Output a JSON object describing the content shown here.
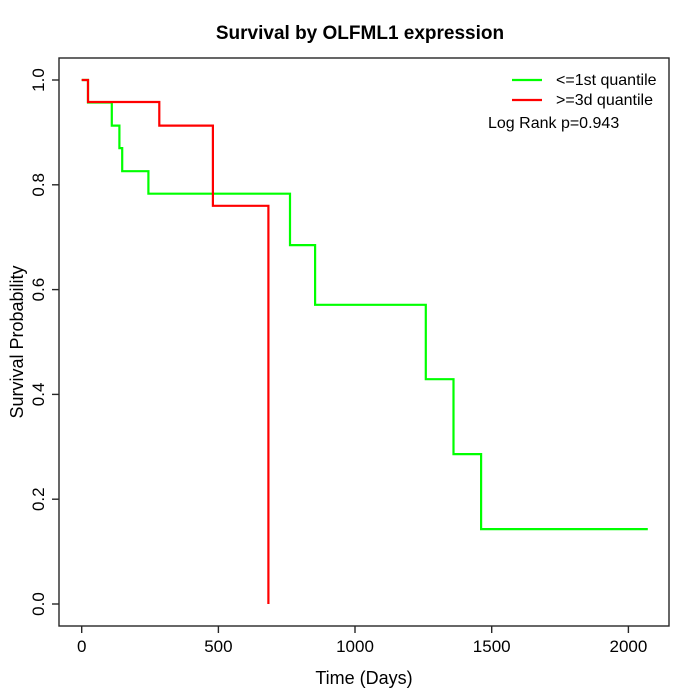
{
  "page": {
    "background_color": "#ffffff",
    "frame_color": "#262626",
    "text_color": "#000000"
  },
  "chart_data": {
    "type": "line",
    "subtype": "kaplan-meier-step-curves",
    "title": "Survival by OLFML1 expression",
    "xlabel": "Time (Days)",
    "ylabel": "Survival Probability",
    "xlim": [
      0,
      2071
    ],
    "ylim": [
      0.0,
      1.0
    ],
    "grid": false,
    "xticks": [
      {
        "value": 0,
        "label": "0"
      },
      {
        "value": 500,
        "label": "500"
      },
      {
        "value": 1000,
        "label": "1000"
      },
      {
        "value": 1500,
        "label": "1500"
      },
      {
        "value": 2000,
        "label": "2000"
      }
    ],
    "yticks": [
      {
        "value": 0.0,
        "label": "0.0"
      },
      {
        "value": 0.2,
        "label": "0.2"
      },
      {
        "value": 0.4,
        "label": "0.4"
      },
      {
        "value": 0.6,
        "label": "0.6"
      },
      {
        "value": 0.8,
        "label": "0.8"
      },
      {
        "value": 1.0,
        "label": "1.0"
      }
    ],
    "legend": {
      "position": "top-right",
      "entries": [
        {
          "label": "<=1st quantile",
          "color": "#00ff00"
        },
        {
          "label": ">=3d quantile",
          "color": "#ff0000"
        }
      ]
    },
    "annotation": "Log Rank p=0.943",
    "series": [
      {
        "name": "<=1st quantile",
        "color": "#00ff00",
        "points": [
          [
            0,
            1.0
          ],
          [
            23,
            1.0
          ],
          [
            23,
            0.957
          ],
          [
            110,
            0.957
          ],
          [
            110,
            0.913
          ],
          [
            138,
            0.913
          ],
          [
            138,
            0.87
          ],
          [
            148,
            0.87
          ],
          [
            148,
            0.826
          ],
          [
            244,
            0.826
          ],
          [
            244,
            0.783
          ],
          [
            762,
            0.783
          ],
          [
            762,
            0.685
          ],
          [
            854,
            0.685
          ],
          [
            854,
            0.571
          ],
          [
            1259,
            0.571
          ],
          [
            1259,
            0.429
          ],
          [
            1360,
            0.429
          ],
          [
            1360,
            0.286
          ],
          [
            1461,
            0.286
          ],
          [
            1461,
            0.143
          ],
          [
            2071,
            0.143
          ]
        ]
      },
      {
        "name": ">=3d quantile",
        "color": "#ff0000",
        "points": [
          [
            0,
            1.0
          ],
          [
            23,
            1.0
          ],
          [
            23,
            0.958
          ],
          [
            284,
            0.958
          ],
          [
            284,
            0.913
          ],
          [
            480,
            0.913
          ],
          [
            480,
            0.76
          ],
          [
            683,
            0.76
          ],
          [
            683,
            0.0
          ]
        ]
      }
    ]
  }
}
